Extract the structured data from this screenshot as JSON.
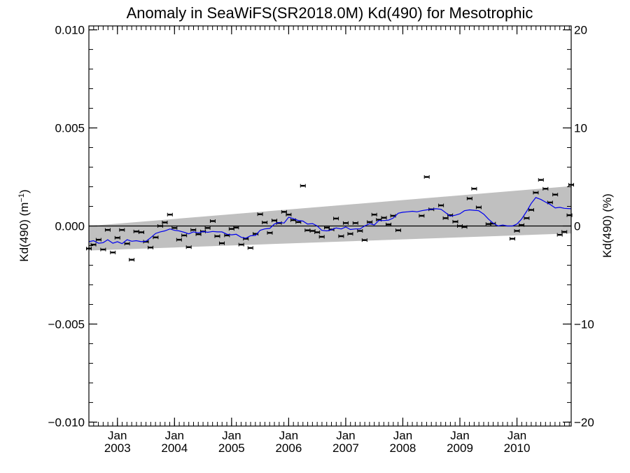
{
  "chart_data": {
    "type": "scatter",
    "title": "Anomaly in SeaWiFS(SR2018.0M) Kd(490) for Mesotrophic",
    "ylabel_left": "Kd(490) (m",
    "ylabel_left_sup": "−1",
    "ylabel_left_close": ")",
    "ylabel_right": "Kd(490) (%)",
    "xlim": [
      2002.5,
      2010.95
    ],
    "ylim": [
      -0.0102,
      0.0102
    ],
    "y2lim": [
      -20.4,
      20.4
    ],
    "y_ticks": [
      {
        "value": 0.01,
        "label": "0.010"
      },
      {
        "value": 0.005,
        "label": "0.005"
      },
      {
        "value": 0.0,
        "label": "0.000"
      },
      {
        "value": -0.005,
        "label": "−0.005"
      },
      {
        "value": -0.01,
        "label": "−0.010"
      }
    ],
    "y2_ticks": [
      {
        "value": 20,
        "label": "20"
      },
      {
        "value": 10,
        "label": "10"
      },
      {
        "value": 0,
        "label": "0"
      },
      {
        "value": -10,
        "label": "−10"
      },
      {
        "value": -20,
        "label": "−20"
      }
    ],
    "x_ticks": [
      {
        "value": 2003.0,
        "month": "Jan",
        "year": "2003"
      },
      {
        "value": 2004.0,
        "month": "Jan",
        "year": "2004"
      },
      {
        "value": 2005.0,
        "month": "Jan",
        "year": "2005"
      },
      {
        "value": 2006.0,
        "month": "Jan",
        "year": "2006"
      },
      {
        "value": 2007.0,
        "month": "Jan",
        "year": "2007"
      },
      {
        "value": 2008.0,
        "month": "Jan",
        "year": "2008"
      },
      {
        "value": 2009.0,
        "month": "Jan",
        "year": "2009"
      },
      {
        "value": 2010.0,
        "month": "Jan",
        "year": "2010"
      }
    ],
    "zero_line": 0.0,
    "band": {
      "x": [
        2002.5,
        2010.95
      ],
      "upper": [
        0.0,
        0.00203
      ],
      "lower": [
        -0.00125,
        -0.00038
      ],
      "color": "#c0c0c0"
    },
    "points": {
      "color": "#000000",
      "values": [
        [
          2002.5,
          -0.00115
        ],
        [
          2002.58,
          -0.00095
        ],
        [
          2002.67,
          -0.0007
        ],
        [
          2002.75,
          -0.0012
        ],
        [
          2002.83,
          -0.0002
        ],
        [
          2002.92,
          -0.00135
        ],
        [
          2003.0,
          -0.0006
        ],
        [
          2003.08,
          -0.0002
        ],
        [
          2003.17,
          -0.0009
        ],
        [
          2003.25,
          -0.00172
        ],
        [
          2003.33,
          -0.00028
        ],
        [
          2003.42,
          -0.00032
        ],
        [
          2003.5,
          -0.0008
        ],
        [
          2003.58,
          -0.0011
        ],
        [
          2003.67,
          -0.00058
        ],
        [
          2003.75,
          0.0
        ],
        [
          2003.83,
          0.00018
        ],
        [
          2003.92,
          0.00058
        ],
        [
          2004.0,
          -0.0001
        ],
        [
          2004.08,
          -0.0007
        ],
        [
          2004.17,
          -0.00048
        ],
        [
          2004.25,
          -0.00108
        ],
        [
          2004.33,
          -0.0002
        ],
        [
          2004.42,
          -0.00042
        ],
        [
          2004.5,
          -0.00028
        ],
        [
          2004.58,
          -0.0001
        ],
        [
          2004.67,
          0.00025
        ],
        [
          2004.75,
          -0.00052
        ],
        [
          2004.83,
          -0.00088
        ],
        [
          2004.92,
          -0.00048
        ],
        [
          2005.0,
          -0.00015
        ],
        [
          2005.08,
          -8e-05
        ],
        [
          2005.17,
          -0.00095
        ],
        [
          2005.25,
          -0.00065
        ],
        [
          2005.33,
          -0.00112
        ],
        [
          2005.42,
          -0.0004
        ],
        [
          2005.5,
          0.0006
        ],
        [
          2005.58,
          0.00018
        ],
        [
          2005.67,
          -0.00035
        ],
        [
          2005.75,
          0.00028
        ],
        [
          2005.83,
          0.00015
        ],
        [
          2005.92,
          0.00072
        ],
        [
          2006.0,
          0.00058
        ],
        [
          2006.08,
          0.0003
        ],
        [
          2006.17,
          0.0002
        ],
        [
          2006.25,
          0.00205
        ],
        [
          2006.33,
          -0.00022
        ],
        [
          2006.42,
          -0.00025
        ],
        [
          2006.5,
          -0.00032
        ],
        [
          2006.58,
          -0.00055
        ],
        [
          2006.67,
          -8e-05
        ],
        [
          2006.75,
          -0.00018
        ],
        [
          2006.83,
          0.00038
        ],
        [
          2006.92,
          -0.00052
        ],
        [
          2007.0,
          0.00015
        ],
        [
          2007.08,
          -0.0004
        ],
        [
          2007.17,
          0.00015
        ],
        [
          2007.25,
          -0.00025
        ],
        [
          2007.33,
          -0.00072
        ],
        [
          2007.42,
          0.0002
        ],
        [
          2007.5,
          0.00058
        ],
        [
          2007.58,
          0.00032
        ],
        [
          2007.67,
          0.00042
        ],
        [
          2007.75,
          8e-05
        ],
        [
          2007.83,
          0.00052
        ],
        [
          2007.92,
          -0.00022
        ],
        [
          2008.33,
          0.00052
        ],
        [
          2008.42,
          0.0025
        ],
        [
          2008.5,
          0.00085
        ],
        [
          2008.67,
          0.00105
        ],
        [
          2008.75,
          0.0004
        ],
        [
          2008.83,
          0.00055
        ],
        [
          2008.92,
          0.00022
        ],
        [
          2009.0,
          0.0
        ],
        [
          2009.08,
          -5e-05
        ],
        [
          2009.17,
          0.0014
        ],
        [
          2009.25,
          0.0019
        ],
        [
          2009.33,
          0.00095
        ],
        [
          2009.5,
          0.0001
        ],
        [
          2009.58,
          0.00012
        ],
        [
          2009.92,
          -0.00065
        ],
        [
          2010.0,
          -0.00025
        ],
        [
          2010.08,
          5e-05
        ],
        [
          2010.17,
          0.0004
        ],
        [
          2010.25,
          0.00082
        ],
        [
          2010.33,
          0.0017
        ],
        [
          2010.42,
          0.00235
        ],
        [
          2010.5,
          0.0019
        ],
        [
          2010.58,
          0.0012
        ],
        [
          2010.67,
          0.0016
        ],
        [
          2010.75,
          -0.00045
        ],
        [
          2010.83,
          -0.0003
        ],
        [
          2010.92,
          0.00055
        ],
        [
          2010.95,
          0.0021
        ]
      ]
    },
    "smooth_line": {
      "color": "#0000ee",
      "values": [
        [
          2002.5,
          -0.0008
        ],
        [
          2002.58,
          -0.00075
        ],
        [
          2002.67,
          -0.00088
        ],
        [
          2002.75,
          -0.00085
        ],
        [
          2002.83,
          -0.0007
        ],
        [
          2002.92,
          -0.00088
        ],
        [
          2003.0,
          -0.0008
        ],
        [
          2003.08,
          -0.0009
        ],
        [
          2003.17,
          -0.0007
        ],
        [
          2003.25,
          -0.00078
        ],
        [
          2003.33,
          -0.00075
        ],
        [
          2003.42,
          -0.0008
        ],
        [
          2003.5,
          -0.00078
        ],
        [
          2003.58,
          -0.0006
        ],
        [
          2003.67,
          -0.00038
        ],
        [
          2003.75,
          -0.0003
        ],
        [
          2003.83,
          -0.00025
        ],
        [
          2003.92,
          -0.00015
        ],
        [
          2004.0,
          -0.00022
        ],
        [
          2004.08,
          -0.00025
        ],
        [
          2004.17,
          -0.00032
        ],
        [
          2004.25,
          -0.0004
        ],
        [
          2004.33,
          -0.0003
        ],
        [
          2004.42,
          -0.00035
        ],
        [
          2004.5,
          -0.00028
        ],
        [
          2004.58,
          -0.00032
        ],
        [
          2004.67,
          -0.00028
        ],
        [
          2004.75,
          -0.0003
        ],
        [
          2004.83,
          -0.0003
        ],
        [
          2004.92,
          -0.00042
        ],
        [
          2005.0,
          -0.00045
        ],
        [
          2005.08,
          -0.00042
        ],
        [
          2005.17,
          -0.00058
        ],
        [
          2005.25,
          -0.00062
        ],
        [
          2005.33,
          -0.0005
        ],
        [
          2005.42,
          -0.00048
        ],
        [
          2005.5,
          -0.00022
        ],
        [
          2005.58,
          -0.00015
        ],
        [
          2005.67,
          -0.00012
        ],
        [
          2005.75,
          0.0001
        ],
        [
          2005.83,
          0.00018
        ],
        [
          2005.92,
          0.00015
        ],
        [
          2006.0,
          0.00045
        ],
        [
          2006.08,
          0.00038
        ],
        [
          2006.17,
          0.00028
        ],
        [
          2006.25,
          0.00025
        ],
        [
          2006.33,
          0.0001
        ],
        [
          2006.42,
          0.00012
        ],
        [
          2006.5,
          0.0
        ],
        [
          2006.58,
          -0.00022
        ],
        [
          2006.67,
          -0.00025
        ],
        [
          2006.75,
          -0.0002
        ],
        [
          2006.83,
          -0.0001
        ],
        [
          2006.92,
          -0.00015
        ],
        [
          2007.0,
          -5e-05
        ],
        [
          2007.08,
          -0.00018
        ],
        [
          2007.17,
          -0.00015
        ],
        [
          2007.25,
          -0.00015
        ],
        [
          2007.33,
          0.0
        ],
        [
          2007.42,
          0.00012
        ],
        [
          2007.5,
          5e-05
        ],
        [
          2007.58,
          0.00028
        ],
        [
          2007.67,
          0.00028
        ],
        [
          2007.75,
          0.0003
        ],
        [
          2007.83,
          0.0004
        ],
        [
          2007.92,
          0.00065
        ],
        [
          2008.0,
          0.0007
        ],
        [
          2008.08,
          0.00072
        ],
        [
          2008.17,
          0.00075
        ],
        [
          2008.25,
          0.00072
        ],
        [
          2008.33,
          0.00078
        ],
        [
          2008.42,
          0.00082
        ],
        [
          2008.5,
          0.00085
        ],
        [
          2008.58,
          0.00088
        ],
        [
          2008.67,
          0.00085
        ],
        [
          2008.75,
          0.00068
        ],
        [
          2008.83,
          0.0005
        ],
        [
          2008.92,
          0.00055
        ],
        [
          2009.0,
          0.00062
        ],
        [
          2009.08,
          0.00078
        ],
        [
          2009.17,
          0.00082
        ],
        [
          2009.25,
          0.0008
        ],
        [
          2009.33,
          0.00078
        ],
        [
          2009.42,
          0.0006
        ],
        [
          2009.5,
          0.00035
        ],
        [
          2009.58,
          0.00015
        ],
        [
          2009.67,
          0.0
        ],
        [
          2009.75,
          5e-05
        ],
        [
          2009.83,
          0.0
        ],
        [
          2009.92,
          0.0
        ],
        [
          2010.0,
          0.0001
        ],
        [
          2010.08,
          0.00035
        ],
        [
          2010.17,
          0.00075
        ],
        [
          2010.25,
          0.00115
        ],
        [
          2010.33,
          0.00145
        ],
        [
          2010.42,
          0.00135
        ],
        [
          2010.5,
          0.00122
        ],
        [
          2010.58,
          0.0011
        ],
        [
          2010.67,
          0.00092
        ],
        [
          2010.75,
          0.00095
        ],
        [
          2010.83,
          0.0009
        ],
        [
          2010.95,
          0.00088
        ]
      ]
    }
  }
}
